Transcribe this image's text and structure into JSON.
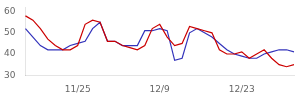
{
  "chart_data": {
    "type": "line",
    "categories": [
      null,
      null,
      null,
      null,
      null,
      null,
      null,
      "11/25",
      null,
      null,
      null,
      null,
      null,
      null,
      null,
      null,
      null,
      null,
      "12/9",
      null,
      null,
      null,
      null,
      null,
      null,
      null,
      null,
      null,
      null,
      "12/23",
      null,
      null,
      null,
      null,
      null,
      null,
      null
    ],
    "series": [
      {
        "color": "#cc0000",
        "values": [
          58,
          56,
          52,
          47,
          44,
          42,
          42,
          44,
          54,
          56,
          55,
          46,
          46,
          44,
          43,
          42,
          44,
          52,
          54,
          48,
          44,
          45,
          53,
          52,
          51,
          50,
          42,
          40,
          40,
          41,
          38,
          40,
          42,
          38,
          35,
          34,
          35
        ]
      },
      {
        "color": "#3333bb",
        "values": [
          52,
          48,
          44,
          42,
          42,
          42,
          44,
          45,
          46,
          52,
          55,
          46,
          46,
          44,
          44,
          44,
          51,
          51,
          52,
          51,
          37,
          38,
          50,
          52,
          50,
          48,
          45,
          42,
          40,
          39,
          38,
          38,
          40,
          41,
          42,
          42,
          41
        ]
      }
    ],
    "ylim": [
      30,
      62
    ],
    "yticks": [
      30,
      40,
      50,
      60
    ],
    "grid": false
  }
}
